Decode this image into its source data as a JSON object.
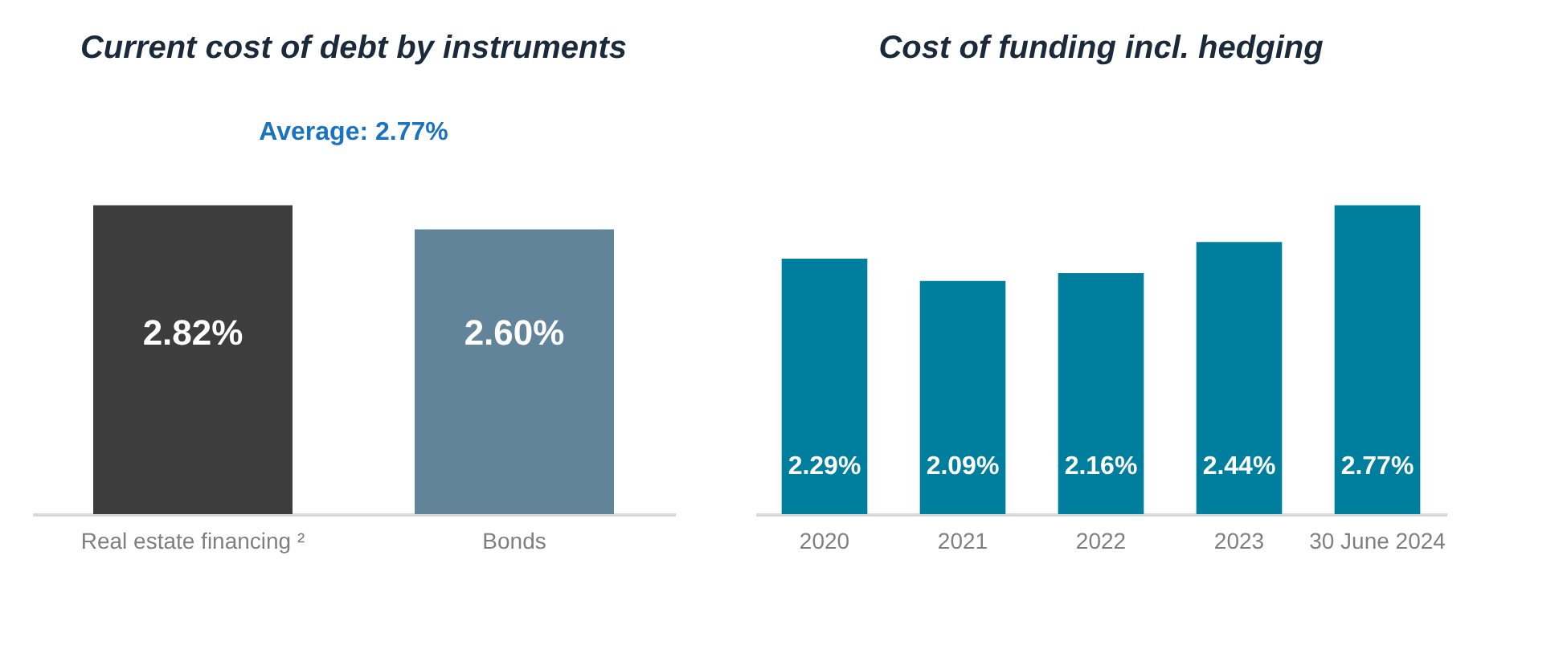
{
  "chart_data": [
    {
      "type": "bar",
      "title": "Current cost of debt by instruments",
      "categories": [
        "Real estate financing ²",
        "Bonds"
      ],
      "values": [
        2.82,
        2.6
      ],
      "colors": [
        "#3d3d3d",
        "#62849b"
      ],
      "value_labels": [
        "2.82%",
        "2.60%"
      ],
      "annotations": [
        "Average: 2.77%"
      ]
    },
    {
      "type": "bar",
      "title": "Cost of funding incl. hedging",
      "categories": [
        "2020",
        "2021",
        "2022",
        "2023",
        "30 June 2024"
      ],
      "values": [
        2.29,
        2.09,
        2.16,
        2.44,
        2.77
      ],
      "colors": [
        "#007e9e",
        "#007e9e",
        "#007e9e",
        "#007e9e",
        "#007e9e"
      ],
      "value_labels": [
        "2.29%",
        "2.09%",
        "2.16%",
        "2.44%",
        "2.77%"
      ]
    }
  ]
}
